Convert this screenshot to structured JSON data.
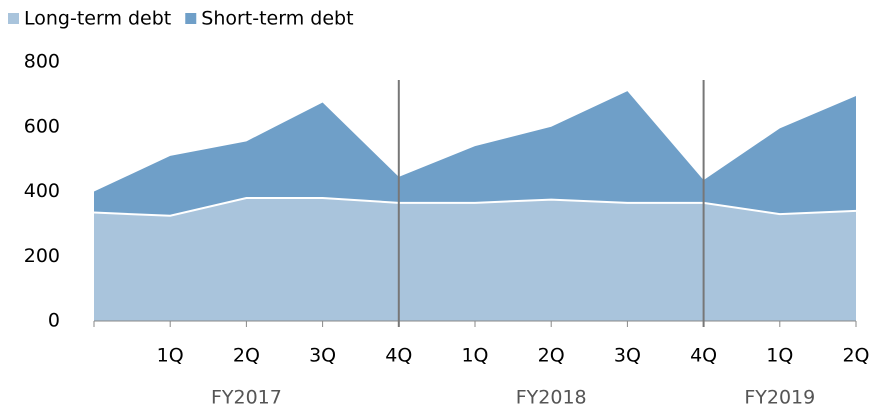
{
  "chart_data": {
    "type": "stacked-area",
    "categories": [
      null,
      "1Q",
      "2Q",
      "3Q",
      "4Q",
      "1Q",
      "2Q",
      "3Q",
      "4Q",
      "1Q",
      "2Q"
    ],
    "groups": [
      "FY2017",
      "FY2018",
      "FY2019"
    ],
    "series": [
      {
        "name": "Long-term debt",
        "color": "#a9c4dc",
        "values": [
          335,
          325,
          380,
          380,
          365,
          365,
          375,
          365,
          365,
          330,
          340
        ]
      },
      {
        "name": "Short-term debt",
        "color": "#6f9fc8",
        "values": [
          65,
          185,
          175,
          295,
          80,
          175,
          225,
          345,
          70,
          265,
          355
        ]
      }
    ],
    "ylim": [
      0,
      800
    ],
    "yticks": [
      0,
      200,
      400,
      600,
      800
    ],
    "legend": "top-left"
  }
}
